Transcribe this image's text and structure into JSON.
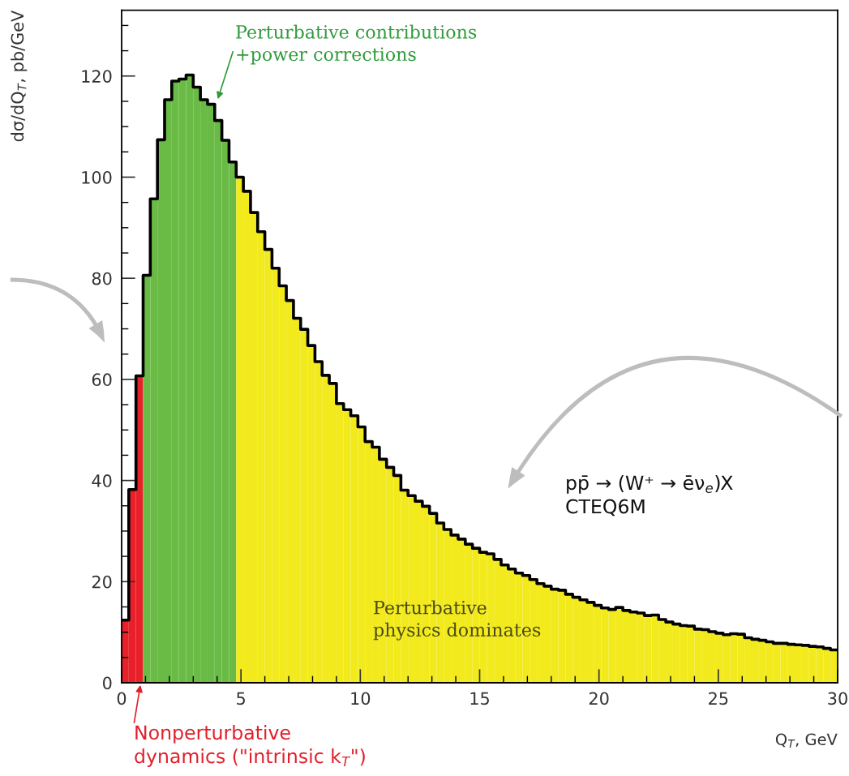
{
  "chart_data": {
    "type": "histogram",
    "xlabel": "Q$_{T}$, GeV",
    "ylabel": "dσ/dQ$_{T}$, pb/GeV",
    "bins": [
      0,
      0.3,
      0.6,
      0.9,
      1.2,
      1.5,
      1.8,
      2.1,
      2.4,
      2.7,
      3.0,
      3.3,
      3.6,
      3.9,
      4.2,
      4.5,
      4.8,
      5.1,
      5.4,
      5.7,
      6.0,
      6.3,
      6.6,
      6.9,
      7.2,
      7.5,
      7.8,
      8.1,
      8.4,
      8.7,
      9.0,
      9.3,
      9.6,
      9.9,
      10.2,
      10.5,
      10.8,
      11.1,
      11.4,
      11.7,
      12.0,
      12.3,
      12.6,
      12.9,
      13.2,
      13.5,
      13.8,
      14.1,
      14.4,
      14.7,
      15.0,
      15.3,
      15.6,
      15.9,
      16.2,
      16.5,
      16.8,
      17.1,
      17.4,
      17.7,
      18.0,
      18.3,
      18.6,
      18.9,
      19.2,
      19.5,
      19.8,
      20.1,
      20.4,
      20.7,
      21.0,
      21.3,
      21.6,
      21.9,
      22.2,
      22.5,
      22.8,
      23.1,
      23.4,
      23.7,
      24.0,
      24.3,
      24.6,
      24.9,
      25.2,
      25.5,
      25.8,
      26.1,
      26.4,
      26.7,
      27.0,
      27.3,
      27.6,
      27.9,
      28.2,
      28.5,
      28.8,
      29.1,
      29.4,
      29.7,
      30.0
    ],
    "values": [
      12.4,
      38.2,
      60.7,
      80.6,
      95.7,
      107.4,
      115.3,
      119.0,
      119.4,
      120.2,
      117.8,
      115.3,
      114.4,
      111.2,
      107.3,
      103.0,
      100.0,
      97.2,
      93.0,
      89.2,
      85.7,
      82.0,
      78.5,
      75.6,
      72.1,
      69.9,
      66.7,
      63.5,
      60.8,
      59.2,
      55.2,
      54.0,
      52.8,
      50.6,
      47.7,
      46.6,
      44.2,
      42.6,
      41.0,
      38.1,
      37.0,
      35.9,
      34.9,
      33.5,
      31.6,
      30.3,
      29.2,
      28.4,
      27.4,
      26.6,
      25.8,
      25.5,
      24.4,
      23.3,
      22.5,
      21.7,
      21.2,
      20.4,
      19.6,
      19.1,
      18.5,
      18.3,
      17.5,
      16.9,
      16.4,
      15.9,
      15.3,
      14.8,
      14.5,
      14.9,
      14.3,
      14.0,
      13.8,
      13.3,
      13.4,
      12.5,
      12.0,
      11.6,
      11.3,
      11.2,
      10.6,
      10.5,
      10.1,
      9.8,
      9.5,
      9.7,
      9.6,
      8.9,
      8.6,
      8.4,
      8.1,
      7.8,
      7.8,
      7.6,
      7.5,
      7.4,
      7.2,
      7.1,
      6.8,
      6.5
    ],
    "colors": [
      "#e8202a",
      "#e8202a",
      "#e8202a",
      "#6abb45",
      "#6abb45",
      "#6abb45",
      "#6abb45",
      "#6abb45",
      "#6abb45",
      "#6abb45",
      "#6abb45",
      "#6abb45",
      "#6abb45",
      "#6abb45",
      "#6abb45",
      "#6abb45",
      "#f2ea1c",
      "#f2ea1c",
      "#f2ea1c",
      "#f2ea1c",
      "#f2ea1c",
      "#f2ea1c",
      "#f2ea1c",
      "#f2ea1c",
      "#f2ea1c",
      "#f2ea1c",
      "#f2ea1c",
      "#f2ea1c",
      "#f2ea1c",
      "#f2ea1c",
      "#f2ea1c",
      "#f2ea1c",
      "#f2ea1c",
      "#f2ea1c",
      "#f2ea1c",
      "#f2ea1c",
      "#f2ea1c",
      "#f2ea1c",
      "#f2ea1c",
      "#f2ea1c",
      "#f2ea1c",
      "#f2ea1c",
      "#f2ea1c",
      "#f2ea1c",
      "#f2ea1c",
      "#f2ea1c",
      "#f2ea1c",
      "#f2ea1c",
      "#f2ea1c",
      "#f2ea1c",
      "#f2ea1c",
      "#f2ea1c",
      "#f2ea1c",
      "#f2ea1c",
      "#f2ea1c",
      "#f2ea1c",
      "#f2ea1c",
      "#f2ea1c",
      "#f2ea1c",
      "#f2ea1c",
      "#f2ea1c",
      "#f2ea1c",
      "#f2ea1c",
      "#f2ea1c",
      "#f2ea1c",
      "#f2ea1c",
      "#f2ea1c",
      "#f2ea1c",
      "#f2ea1c",
      "#f2ea1c",
      "#f2ea1c",
      "#f2ea1c",
      "#f2ea1c",
      "#f2ea1c",
      "#f2ea1c",
      "#f2ea1c",
      "#f2ea1c",
      "#f2ea1c",
      "#f2ea1c",
      "#f2ea1c",
      "#f2ea1c",
      "#f2ea1c",
      "#f2ea1c",
      "#f2ea1c",
      "#f2ea1c",
      "#f2ea1c",
      "#f2ea1c",
      "#f2ea1c",
      "#f2ea1c",
      "#f2ea1c",
      "#f2ea1c",
      "#f2ea1c",
      "#f2ea1c",
      "#f2ea1c",
      "#f2ea1c",
      "#f2ea1c",
      "#f2ea1c",
      "#f2ea1c",
      "#f2ea1c",
      "#f2ea1c"
    ],
    "series": [
      {
        "type": "step",
        "color": "#000000",
        "x": [
          0,
          0.3,
          0.6,
          0.9,
          1.2,
          1.5,
          1.8,
          2.1,
          2.4,
          2.7,
          3.0,
          3.3,
          3.6,
          3.9,
          4.2,
          4.5,
          4.8,
          5.1,
          5.4,
          5.7,
          6.0,
          6.3,
          6.6,
          6.9,
          7.2,
          7.5,
          7.8,
          8.1,
          8.4,
          8.7,
          9.0,
          9.3,
          9.6,
          9.9,
          10.2,
          10.5,
          10.8,
          11.1,
          11.4,
          11.7,
          12.0,
          12.3,
          12.6,
          12.9,
          13.2,
          13.5,
          13.8,
          14.1,
          14.4,
          14.7,
          15.0,
          15.3,
          15.6,
          15.9,
          16.2,
          16.5,
          16.8,
          17.1,
          17.4,
          17.7,
          18.0,
          18.3,
          18.6,
          18.9,
          19.2,
          19.5,
          19.8,
          20.1,
          20.4,
          20.7,
          21.0,
          21.3,
          21.6,
          21.9,
          22.2,
          22.5,
          22.8,
          23.1,
          23.4,
          23.7,
          24.0,
          24.3,
          24.6,
          24.9,
          25.2,
          25.5,
          25.8,
          26.1,
          26.4,
          26.7,
          27.0,
          27.3,
          27.6,
          27.9,
          28.2,
          28.5,
          28.8,
          29.1,
          29.4,
          29.7,
          30.0
        ],
        "values": [
          12.4,
          38.2,
          60.7,
          80.6,
          95.7,
          107.4,
          115.3,
          119.0,
          119.4,
          120.2,
          117.8,
          115.3,
          114.4,
          111.2,
          107.3,
          103.0,
          100.0,
          97.2,
          93.0,
          89.2,
          85.7,
          82.0,
          78.5,
          75.6,
          72.1,
          69.9,
          66.7,
          63.5,
          60.8,
          59.2,
          55.2,
          54.0,
          52.8,
          50.6,
          47.7,
          46.6,
          44.2,
          42.6,
          41.0,
          38.1,
          37.0,
          35.9,
          34.9,
          33.5,
          31.6,
          30.3,
          29.2,
          28.4,
          27.4,
          26.6,
          25.8,
          25.5,
          24.4,
          23.3,
          22.5,
          21.7,
          21.2,
          20.4,
          19.6,
          19.1,
          18.5,
          18.3,
          17.5,
          16.9,
          16.4,
          15.9,
          15.3,
          14.8,
          14.5,
          14.9,
          14.3,
          14.0,
          13.8,
          13.3,
          13.4,
          12.5,
          12.0,
          11.6,
          11.3,
          11.2,
          10.6,
          10.5,
          10.1,
          9.8,
          9.5,
          9.7,
          9.6,
          8.9,
          8.6,
          8.4,
          8.1,
          7.8,
          7.8,
          7.6,
          7.5,
          7.4,
          7.2,
          7.1,
          6.8,
          6.5,
          6.5
        ]
      }
    ],
    "xlim": [
      0,
      30
    ],
    "xticks": [
      0,
      5,
      10,
      15,
      20,
      25,
      30
    ],
    "ylim": [
      0,
      133
    ],
    "yticks": [
      0,
      20,
      40,
      60,
      80,
      100,
      120
    ],
    "grid": false,
    "annotations": [
      {
        "text": "Perturbative contributions\n+power corrections",
        "x": 4.0,
        "y": 115
      },
      {
        "text": "Nonperturbative\ndynamics (\"intrinsic k$_{T}$\")",
        "x": 0.8,
        "y": 0
      },
      "Perturbative\nphysics dominates",
      "pp̄ → (W⁺ → ēν$_{e}$)X\nCTEQ6M"
    ]
  }
}
